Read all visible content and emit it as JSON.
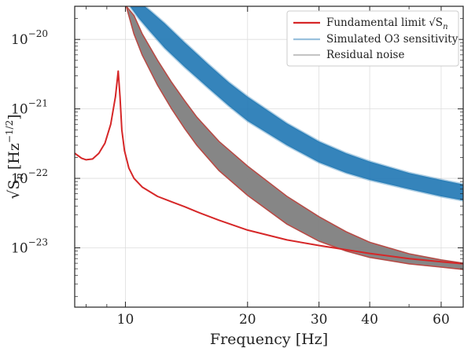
{
  "chart_data": {
    "type": "line",
    "xlabel": "Frequency [Hz]",
    "ylabel_main": "√S",
    "ylabel_sub": "n",
    "ylabel_units": "[Hz",
    "ylabel_exp": "−1/2",
    "ylabel_close": "]",
    "xscale": "log",
    "yscale": "log",
    "xlim": [
      7.5,
      68
    ],
    "ylim": [
      1.4e-24,
      3e-20
    ],
    "x_ticks": [
      10,
      20,
      30,
      40,
      60
    ],
    "y_ticks": [
      {
        "value": 1e-20,
        "label_base": "10",
        "label_exp": "−20"
      },
      {
        "value": 1e-21,
        "label_base": "10",
        "label_exp": "−21"
      },
      {
        "value": 1e-22,
        "label_base": "10",
        "label_exp": "−22"
      },
      {
        "value": 1e-23,
        "label_base": "10",
        "label_exp": "−23"
      }
    ],
    "grid": true,
    "legend_position": "top-right",
    "series": [
      {
        "name": "Fundamental limit",
        "legend_math": "√S",
        "legend_math_sub": "n",
        "color": "#d62728",
        "style": "line",
        "x": [
          7.5,
          7.8,
          8.0,
          8.3,
          8.6,
          8.9,
          9.2,
          9.45,
          9.6,
          9.7,
          9.8,
          9.95,
          10.2,
          10.5,
          11,
          12,
          13,
          14,
          15,
          17,
          20,
          25,
          30,
          40,
          50,
          60,
          68
        ],
        "y": [
          2.3e-22,
          1.95e-22,
          1.85e-22,
          1.9e-22,
          2.3e-22,
          3.2e-22,
          6e-22,
          1.5e-21,
          3.5e-21,
          1.5e-21,
          5e-22,
          2.5e-22,
          1.4e-22,
          1e-22,
          7.5e-23,
          5.5e-23,
          4.6e-23,
          3.9e-23,
          3.3e-23,
          2.5e-23,
          1.8e-23,
          1.3e-23,
          1.08e-23,
          8.3e-24,
          7e-24,
          6.3e-24,
          5.9e-24
        ]
      },
      {
        "name": "Simulated O3 sensitivity",
        "color": "#1f77b4",
        "style": "band",
        "x": [
          10.3,
          10.8,
          11.5,
          12.5,
          14,
          16,
          18,
          20,
          25,
          30,
          35,
          40,
          50,
          60,
          68
        ],
        "y_low": [
          2.9e-20,
          2e-20,
          1.3e-20,
          7.5e-21,
          4e-21,
          2e-21,
          1.1e-21,
          6.7e-22,
          3e-22,
          1.7e-22,
          1.2e-22,
          9.5e-23,
          7e-23,
          5.5e-23,
          4.8e-23
        ],
        "y_high": [
          4e-20,
          3.5e-20,
          2.6e-20,
          1.7e-20,
          9e-21,
          4.4e-21,
          2.4e-21,
          1.5e-21,
          6.2e-22,
          3.4e-22,
          2.3e-22,
          1.75e-22,
          1.2e-22,
          9.5e-23,
          8.2e-23
        ]
      },
      {
        "name": "Residual noise",
        "color": "#7f7f7f",
        "style": "band",
        "x": [
          10.05,
          10.5,
          11,
          12,
          13,
          14,
          15,
          17,
          20,
          25,
          30,
          35,
          40,
          50,
          60,
          68
        ],
        "y_low": [
          3e-20,
          1.2e-20,
          6e-21,
          2.2e-21,
          1e-21,
          5.2e-22,
          3e-22,
          1.3e-22,
          5.7e-23,
          2.2e-23,
          1.25e-23,
          9e-24,
          7.3e-24,
          5.9e-24,
          5.3e-24,
          4.9e-24
        ],
        "y_high": [
          3e-20,
          2.2e-20,
          1.2e-20,
          5e-21,
          2.4e-21,
          1.3e-21,
          7.6e-22,
          3.4e-22,
          1.5e-22,
          5.5e-23,
          2.8e-23,
          1.7e-23,
          1.2e-23,
          8.2e-24,
          6.7e-24,
          6e-24
        ]
      }
    ]
  }
}
